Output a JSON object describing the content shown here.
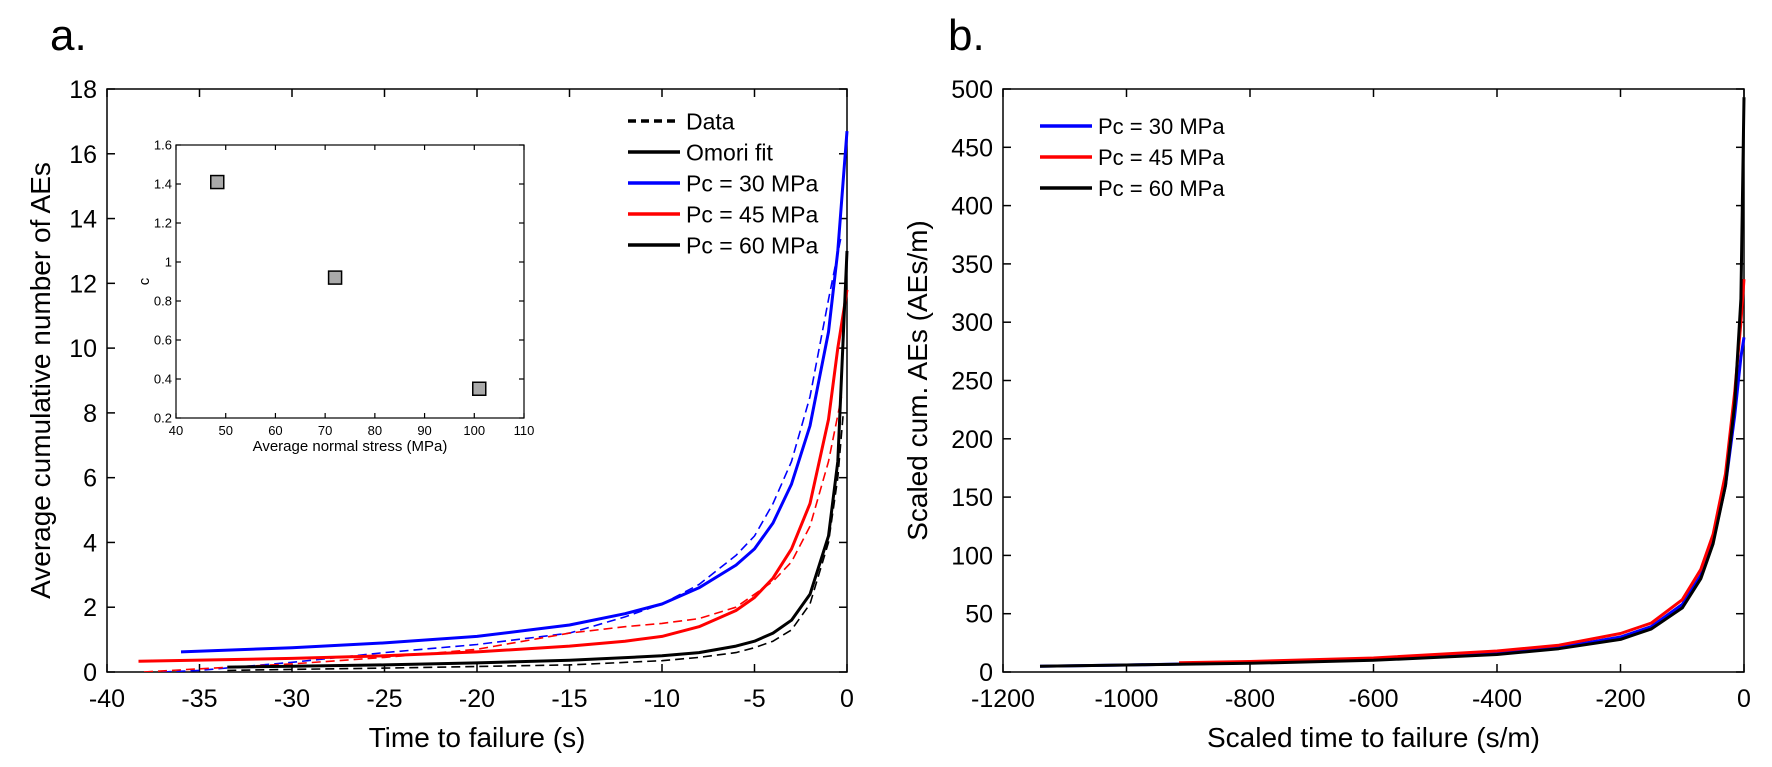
{
  "chart_data": [
    {
      "panel_label": "a.",
      "type": "line",
      "xlabel": "Time to failure (s)",
      "ylabel": "Average cumulative number of AEs",
      "xlim": [
        -40,
        0
      ],
      "ylim": [
        0,
        18
      ],
      "xticks": [
        -40,
        -35,
        -30,
        -25,
        -20,
        -15,
        -10,
        -5,
        0
      ],
      "yticks": [
        0,
        2,
        4,
        6,
        8,
        10,
        12,
        14,
        16,
        18
      ],
      "grid": false,
      "legend_placement": "top-right",
      "legend": [
        {
          "label": "Data",
          "color": "#000000",
          "style": "dashed"
        },
        {
          "label": "Omori fit",
          "color": "#000000",
          "style": "solid"
        },
        {
          "label": "Pc = 30 MPa",
          "color": "#0000ff",
          "style": "solid"
        },
        {
          "label": "Pc = 45 MPa",
          "color": "#ff0000",
          "style": "solid"
        },
        {
          "label": "Pc = 60 MPa",
          "color": "#000000",
          "style": "solid"
        }
      ],
      "series": [
        {
          "group": "Pc = 30 MPa",
          "kind": "Data",
          "color": "#0000ff",
          "style": "dashed",
          "x": [
            -37,
            -35,
            -30,
            -25,
            -20,
            -15,
            -12,
            -10,
            -8,
            -6,
            -5,
            -4,
            -3,
            -2,
            -1,
            -0.3
          ],
          "y": [
            0,
            0.05,
            0.3,
            0.6,
            0.85,
            1.2,
            1.7,
            2.1,
            2.7,
            3.6,
            4.2,
            5.2,
            6.5,
            8.5,
            11.5,
            13.5
          ]
        },
        {
          "group": "Pc = 45 MPa",
          "kind": "Data",
          "color": "#ff0000",
          "style": "dashed",
          "x": [
            -38,
            -35,
            -30,
            -25,
            -20,
            -15,
            -12,
            -10,
            -8,
            -6,
            -5,
            -4,
            -3,
            -2,
            -1,
            -0.3
          ],
          "y": [
            0,
            0.1,
            0.25,
            0.45,
            0.7,
            1.2,
            1.4,
            1.5,
            1.65,
            2.0,
            2.4,
            2.8,
            3.4,
            4.5,
            6.5,
            8.5
          ]
        },
        {
          "group": "Pc = 60 MPa",
          "kind": "Data",
          "color": "#000000",
          "style": "dashed",
          "x": [
            -33.5,
            -30,
            -25,
            -20,
            -15,
            -10,
            -8,
            -6,
            -5,
            -4,
            -3,
            -2,
            -1,
            -0.5,
            -0.2
          ],
          "y": [
            0.05,
            0.08,
            0.12,
            0.17,
            0.22,
            0.35,
            0.45,
            0.6,
            0.75,
            0.95,
            1.3,
            2.1,
            4,
            6,
            8
          ]
        },
        {
          "group": "Pc = 30 MPa",
          "kind": "Omori fit",
          "color": "#0000ff",
          "style": "solid",
          "x": [
            -36,
            -30,
            -25,
            -20,
            -15,
            -12,
            -10,
            -8,
            -6,
            -5,
            -4,
            -3,
            -2,
            -1,
            -0.5,
            0
          ],
          "y": [
            0.62,
            0.75,
            0.9,
            1.1,
            1.45,
            1.8,
            2.1,
            2.6,
            3.3,
            3.8,
            4.6,
            5.8,
            7.6,
            10.5,
            13,
            16.7
          ]
        },
        {
          "group": "Pc = 45 MPa",
          "kind": "Omori fit",
          "color": "#ff0000",
          "style": "solid",
          "x": [
            -38.3,
            -30,
            -25,
            -20,
            -15,
            -12,
            -10,
            -8,
            -6,
            -5,
            -4,
            -3,
            -2,
            -1,
            -0.5,
            0
          ],
          "y": [
            0.33,
            0.42,
            0.5,
            0.62,
            0.8,
            0.95,
            1.1,
            1.4,
            1.9,
            2.3,
            2.9,
            3.8,
            5.2,
            7.8,
            10,
            11.8
          ]
        },
        {
          "group": "Pc = 60 MPa",
          "kind": "Omori fit",
          "color": "#000000",
          "style": "solid",
          "x": [
            -33.5,
            -30,
            -25,
            -20,
            -15,
            -10,
            -8,
            -6,
            -5,
            -4,
            -3,
            -2,
            -1,
            -0.5,
            0
          ],
          "y": [
            0.15,
            0.18,
            0.22,
            0.28,
            0.36,
            0.5,
            0.6,
            0.8,
            0.95,
            1.2,
            1.6,
            2.4,
            4.2,
            6.5,
            13
          ]
        }
      ],
      "inset": {
        "type": "scatter",
        "xlabel": "Average normal stress (MPa)",
        "ylabel": "c",
        "xlim": [
          40,
          110
        ],
        "ylim": [
          0.2,
          1.6
        ],
        "xticks": [
          40,
          50,
          60,
          70,
          80,
          90,
          100,
          110
        ],
        "yticks": [
          0.2,
          0.4,
          0.6,
          0.8,
          1,
          1.2,
          1.4,
          1.6
        ],
        "marker": "square",
        "marker_color": "#aaaaaa",
        "x": [
          48.3,
          72,
          101
        ],
        "y": [
          1.41,
          0.92,
          0.35
        ]
      }
    },
    {
      "panel_label": "b.",
      "type": "line",
      "xlabel": "Scaled time to failure (s/m)",
      "ylabel": "Scaled cum. AEs (AEs/m)",
      "xlim": [
        -1200,
        0
      ],
      "ylim": [
        0,
        500
      ],
      "xticks": [
        -1200,
        -1000,
        -800,
        -600,
        -400,
        -200,
        0
      ],
      "yticks": [
        0,
        50,
        100,
        150,
        200,
        250,
        300,
        350,
        400,
        450,
        500
      ],
      "grid": false,
      "legend_placement": "top-left",
      "legend": [
        {
          "label": "Pc = 30 MPa",
          "color": "#0000ff",
          "style": "solid"
        },
        {
          "label": "Pc = 45 MPa",
          "color": "#ff0000",
          "style": "solid"
        },
        {
          "label": "Pc = 60 MPa",
          "color": "#000000",
          "style": "solid"
        }
      ],
      "series": [
        {
          "name": "Pc = 30 MPa",
          "color": "#0000ff",
          "style": "solid",
          "x": [
            -1140,
            -1000,
            -800,
            -600,
            -400,
            -300,
            -200,
            -150,
            -100,
            -70,
            -50,
            -30,
            -15,
            -5,
            0
          ],
          "y": [
            5,
            6,
            8,
            11,
            16,
            21,
            30,
            39,
            58,
            83,
            112,
            160,
            220,
            270,
            287
          ]
        },
        {
          "name": "Pc = 45 MPa",
          "color": "#ff0000",
          "style": "solid",
          "x": [
            -915,
            -800,
            -600,
            -400,
            -300,
            -200,
            -150,
            -100,
            -70,
            -50,
            -30,
            -15,
            -5,
            0
          ],
          "y": [
            8,
            9,
            12,
            18,
            23,
            33,
            42,
            62,
            88,
            118,
            170,
            240,
            300,
            337
          ]
        },
        {
          "name": "Pc = 60 MPa",
          "color": "#000000",
          "style": "solid",
          "x": [
            -1140,
            -1000,
            -800,
            -600,
            -400,
            -300,
            -200,
            -150,
            -100,
            -70,
            -50,
            -30,
            -15,
            -5,
            0
          ],
          "y": [
            5,
            6,
            7.5,
            10,
            15,
            20,
            28,
            37,
            55,
            80,
            110,
            160,
            230,
            320,
            493
          ]
        }
      ]
    }
  ]
}
